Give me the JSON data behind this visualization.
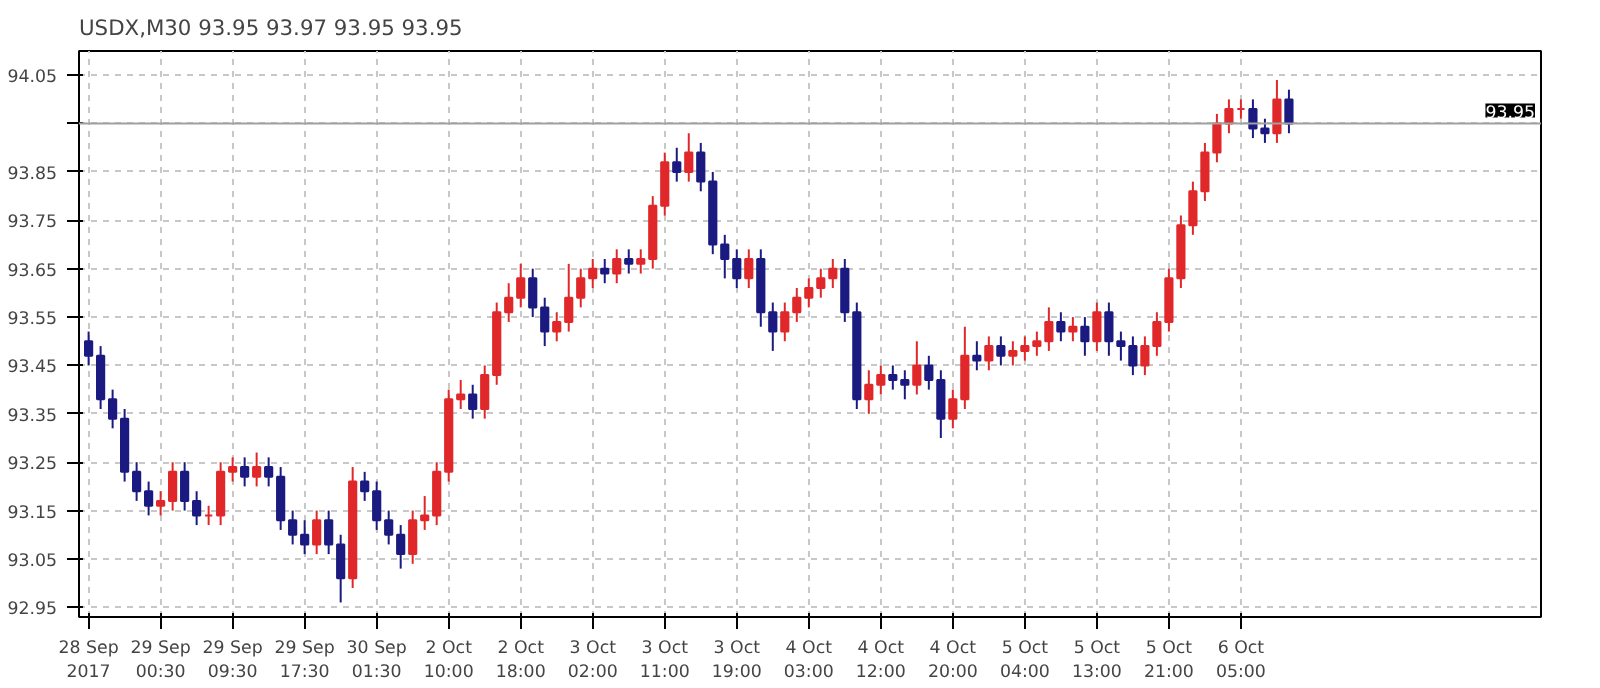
{
  "chart_data": {
    "type": "candlestick",
    "title": "USDX,M30  93.95 93.97 93.95 93.95",
    "categories": [
      "28 Sep 2017",
      null,
      null,
      null,
      null,
      null,
      "29 Sep 00:30",
      null,
      null,
      null,
      null,
      null,
      "29 Sep 09:30",
      null,
      null,
      null,
      null,
      null,
      "29 Sep 17:30",
      null,
      null,
      null,
      null,
      null,
      "30 Sep 01:30",
      null,
      null,
      null,
      null,
      null,
      "2 Oct 10:00",
      null,
      null,
      null,
      null,
      null,
      "2 Oct 18:00",
      null,
      null,
      null,
      null,
      null,
      "3 Oct 02:00",
      null,
      null,
      null,
      null,
      null,
      "3 Oct 11:00",
      null,
      null,
      null,
      null,
      null,
      "3 Oct 19:00",
      null,
      null,
      null,
      null,
      null,
      "4 Oct 03:00",
      null,
      null,
      null,
      null,
      null,
      "4 Oct 12:00",
      null,
      null,
      null,
      null,
      null,
      "4 Oct 20:00",
      null,
      null,
      null,
      null,
      null,
      "5 Oct 04:00",
      null,
      null,
      null,
      null,
      null,
      "5 Oct 13:00",
      null,
      null,
      null,
      null,
      null,
      "5 Oct 21:00",
      null,
      null,
      null,
      null,
      null,
      "6 Oct 05:00",
      null,
      null,
      null,
      null
    ],
    "ohlc": [
      [
        93.5,
        93.52,
        93.45,
        93.47
      ],
      [
        93.47,
        93.49,
        93.36,
        93.38
      ],
      [
        93.38,
        93.4,
        93.32,
        93.34
      ],
      [
        93.34,
        93.36,
        93.21,
        93.23
      ],
      [
        93.23,
        93.25,
        93.17,
        93.19
      ],
      [
        93.19,
        93.21,
        93.14,
        93.16
      ],
      [
        93.16,
        93.19,
        93.14,
        93.17
      ],
      [
        93.17,
        93.25,
        93.15,
        93.23
      ],
      [
        93.23,
        93.25,
        93.15,
        93.17
      ],
      [
        93.17,
        93.19,
        93.12,
        93.14
      ],
      [
        93.14,
        93.16,
        93.12,
        93.14
      ],
      [
        93.14,
        93.25,
        93.12,
        93.23
      ],
      [
        93.23,
        93.26,
        93.21,
        93.24
      ],
      [
        93.24,
        93.26,
        93.2,
        93.22
      ],
      [
        93.22,
        93.27,
        93.2,
        93.24
      ],
      [
        93.24,
        93.26,
        93.2,
        93.22
      ],
      [
        93.22,
        93.24,
        93.11,
        93.13
      ],
      [
        93.13,
        93.15,
        93.08,
        93.1
      ],
      [
        93.1,
        93.13,
        93.06,
        93.08
      ],
      [
        93.08,
        93.15,
        93.06,
        93.13
      ],
      [
        93.13,
        93.15,
        93.06,
        93.08
      ],
      [
        93.08,
        93.1,
        92.96,
        93.01
      ],
      [
        93.01,
        93.24,
        92.99,
        93.21
      ],
      [
        93.21,
        93.23,
        93.17,
        93.19
      ],
      [
        93.19,
        93.21,
        93.11,
        93.13
      ],
      [
        93.13,
        93.15,
        93.08,
        93.1
      ],
      [
        93.1,
        93.12,
        93.03,
        93.06
      ],
      [
        93.06,
        93.15,
        93.04,
        93.13
      ],
      [
        93.13,
        93.18,
        93.11,
        93.14
      ],
      [
        93.14,
        93.25,
        93.12,
        93.23
      ],
      [
        93.23,
        93.4,
        93.21,
        93.38
      ],
      [
        93.38,
        93.42,
        93.36,
        93.39
      ],
      [
        93.39,
        93.41,
        93.34,
        93.36
      ],
      [
        93.36,
        93.45,
        93.34,
        93.43
      ],
      [
        93.43,
        93.58,
        93.41,
        93.56
      ],
      [
        93.56,
        93.62,
        93.54,
        93.59
      ],
      [
        93.59,
        93.66,
        93.57,
        93.63
      ],
      [
        93.63,
        93.65,
        93.55,
        93.57
      ],
      [
        93.57,
        93.59,
        93.49,
        93.52
      ],
      [
        93.52,
        93.56,
        93.5,
        93.54
      ],
      [
        93.54,
        93.66,
        93.52,
        93.59
      ],
      [
        93.59,
        93.65,
        93.57,
        93.63
      ],
      [
        93.63,
        93.67,
        93.61,
        93.65
      ],
      [
        93.65,
        93.67,
        93.62,
        93.64
      ],
      [
        93.64,
        93.69,
        93.62,
        93.67
      ],
      [
        93.67,
        93.69,
        93.64,
        93.66
      ],
      [
        93.66,
        93.69,
        93.64,
        93.67
      ],
      [
        93.67,
        93.8,
        93.65,
        93.78
      ],
      [
        93.78,
        93.89,
        93.76,
        93.87
      ],
      [
        93.87,
        93.9,
        93.83,
        93.85
      ],
      [
        93.85,
        93.93,
        93.83,
        93.89
      ],
      [
        93.89,
        93.91,
        93.81,
        93.83
      ],
      [
        93.83,
        93.85,
        93.68,
        93.7
      ],
      [
        93.7,
        93.72,
        93.63,
        93.67
      ],
      [
        93.67,
        93.69,
        93.61,
        93.63
      ],
      [
        93.63,
        93.69,
        93.61,
        93.67
      ],
      [
        93.67,
        93.69,
        93.53,
        93.56
      ],
      [
        93.56,
        93.58,
        93.48,
        93.52
      ],
      [
        93.52,
        93.58,
        93.5,
        93.56
      ],
      [
        93.56,
        93.61,
        93.54,
        93.59
      ],
      [
        93.59,
        93.63,
        93.57,
        93.61
      ],
      [
        93.61,
        93.65,
        93.59,
        93.63
      ],
      [
        93.63,
        93.67,
        93.61,
        93.65
      ],
      [
        93.65,
        93.67,
        93.54,
        93.56
      ],
      [
        93.56,
        93.58,
        93.36,
        93.38
      ],
      [
        93.38,
        93.44,
        93.35,
        93.41
      ],
      [
        93.41,
        93.45,
        93.39,
        93.43
      ],
      [
        93.43,
        93.45,
        93.4,
        93.42
      ],
      [
        93.42,
        93.44,
        93.38,
        93.41
      ],
      [
        93.41,
        93.5,
        93.39,
        93.45
      ],
      [
        93.45,
        93.47,
        93.4,
        93.42
      ],
      [
        93.42,
        93.44,
        93.3,
        93.34
      ],
      [
        93.34,
        93.4,
        93.32,
        93.38
      ],
      [
        93.38,
        93.53,
        93.36,
        93.47
      ],
      [
        93.47,
        93.5,
        93.44,
        93.46
      ],
      [
        93.46,
        93.51,
        93.44,
        93.49
      ],
      [
        93.49,
        93.51,
        93.45,
        93.47
      ],
      [
        93.47,
        93.5,
        93.45,
        93.48
      ],
      [
        93.48,
        93.51,
        93.46,
        93.49
      ],
      [
        93.49,
        93.52,
        93.47,
        93.5
      ],
      [
        93.5,
        93.57,
        93.48,
        93.54
      ],
      [
        93.54,
        93.56,
        93.5,
        93.52
      ],
      [
        93.52,
        93.55,
        93.5,
        93.53
      ],
      [
        93.53,
        93.55,
        93.47,
        93.5
      ],
      [
        93.5,
        93.58,
        93.48,
        93.56
      ],
      [
        93.56,
        93.58,
        93.47,
        93.5
      ],
      [
        93.5,
        93.52,
        93.46,
        93.49
      ],
      [
        93.49,
        93.51,
        93.43,
        93.45
      ],
      [
        93.45,
        93.51,
        93.43,
        93.49
      ],
      [
        93.49,
        93.56,
        93.47,
        93.54
      ],
      [
        93.54,
        93.65,
        93.52,
        93.63
      ],
      [
        93.63,
        93.76,
        93.61,
        93.74
      ],
      [
        93.74,
        93.83,
        93.72,
        93.81
      ],
      [
        93.81,
        93.91,
        93.79,
        93.89
      ],
      [
        93.89,
        93.97,
        93.87,
        93.95
      ],
      [
        93.95,
        94.0,
        93.93,
        93.98
      ],
      [
        93.98,
        94.0,
        93.96,
        93.98
      ],
      [
        93.98,
        94.0,
        93.92,
        93.94
      ],
      [
        93.94,
        93.96,
        93.91,
        93.93
      ],
      [
        93.93,
        94.04,
        93.91,
        94.0
      ],
      [
        94.0,
        94.02,
        93.93,
        93.95
      ]
    ],
    "colors": [
      "#1a1a80",
      "#1a1a80",
      "#1a1a80",
      "#1a1a80",
      "#1a1a80",
      "#1a1a80",
      "#e0282a",
      "#e0282a",
      "#1a1a80",
      "#1a1a80",
      "#e0282a",
      "#e0282a",
      "#e0282a",
      "#1a1a80",
      "#e0282a",
      "#1a1a80",
      "#1a1a80",
      "#1a1a80",
      "#1a1a80",
      "#e0282a",
      "#1a1a80",
      "#1a1a80",
      "#e0282a",
      "#1a1a80",
      "#1a1a80",
      "#1a1a80",
      "#1a1a80",
      "#e0282a",
      "#e0282a",
      "#e0282a",
      "#e0282a",
      "#e0282a",
      "#1a1a80",
      "#e0282a",
      "#e0282a",
      "#e0282a",
      "#e0282a",
      "#1a1a80",
      "#1a1a80",
      "#e0282a",
      "#e0282a",
      "#e0282a",
      "#e0282a",
      "#1a1a80",
      "#e0282a",
      "#1a1a80",
      "#e0282a",
      "#e0282a",
      "#e0282a",
      "#1a1a80",
      "#e0282a",
      "#1a1a80",
      "#1a1a80",
      "#1a1a80",
      "#1a1a80",
      "#e0282a",
      "#1a1a80",
      "#1a1a80",
      "#e0282a",
      "#e0282a",
      "#e0282a",
      "#e0282a",
      "#e0282a",
      "#1a1a80",
      "#1a1a80",
      "#e0282a",
      "#e0282a",
      "#1a1a80",
      "#1a1a80",
      "#e0282a",
      "#1a1a80",
      "#1a1a80",
      "#e0282a",
      "#e0282a",
      "#1a1a80",
      "#e0282a",
      "#1a1a80",
      "#e0282a",
      "#e0282a",
      "#e0282a",
      "#e0282a",
      "#1a1a80",
      "#e0282a",
      "#1a1a80",
      "#e0282a",
      "#1a1a80",
      "#1a1a80",
      "#1a1a80",
      "#e0282a",
      "#e0282a",
      "#e0282a",
      "#e0282a",
      "#e0282a",
      "#e0282a",
      "#e0282a",
      "#e0282a",
      "#e0282a",
      "#1a1a80",
      "#1a1a80",
      "#e0282a",
      "#1a1a80"
    ],
    "ylim": [
      92.93,
      94.1
    ],
    "yticks": [
      92.95,
      93.05,
      93.15,
      93.25,
      93.35,
      93.45,
      93.55,
      93.65,
      93.75,
      93.85,
      {
        "value": 93.95,
        "label": null
      },
      94.05
    ],
    "ref_lines": [
      {
        "axis": "y",
        "value": 93.95,
        "label": "93.95",
        "color": "#a0a0a0"
      }
    ],
    "grid": true
  }
}
